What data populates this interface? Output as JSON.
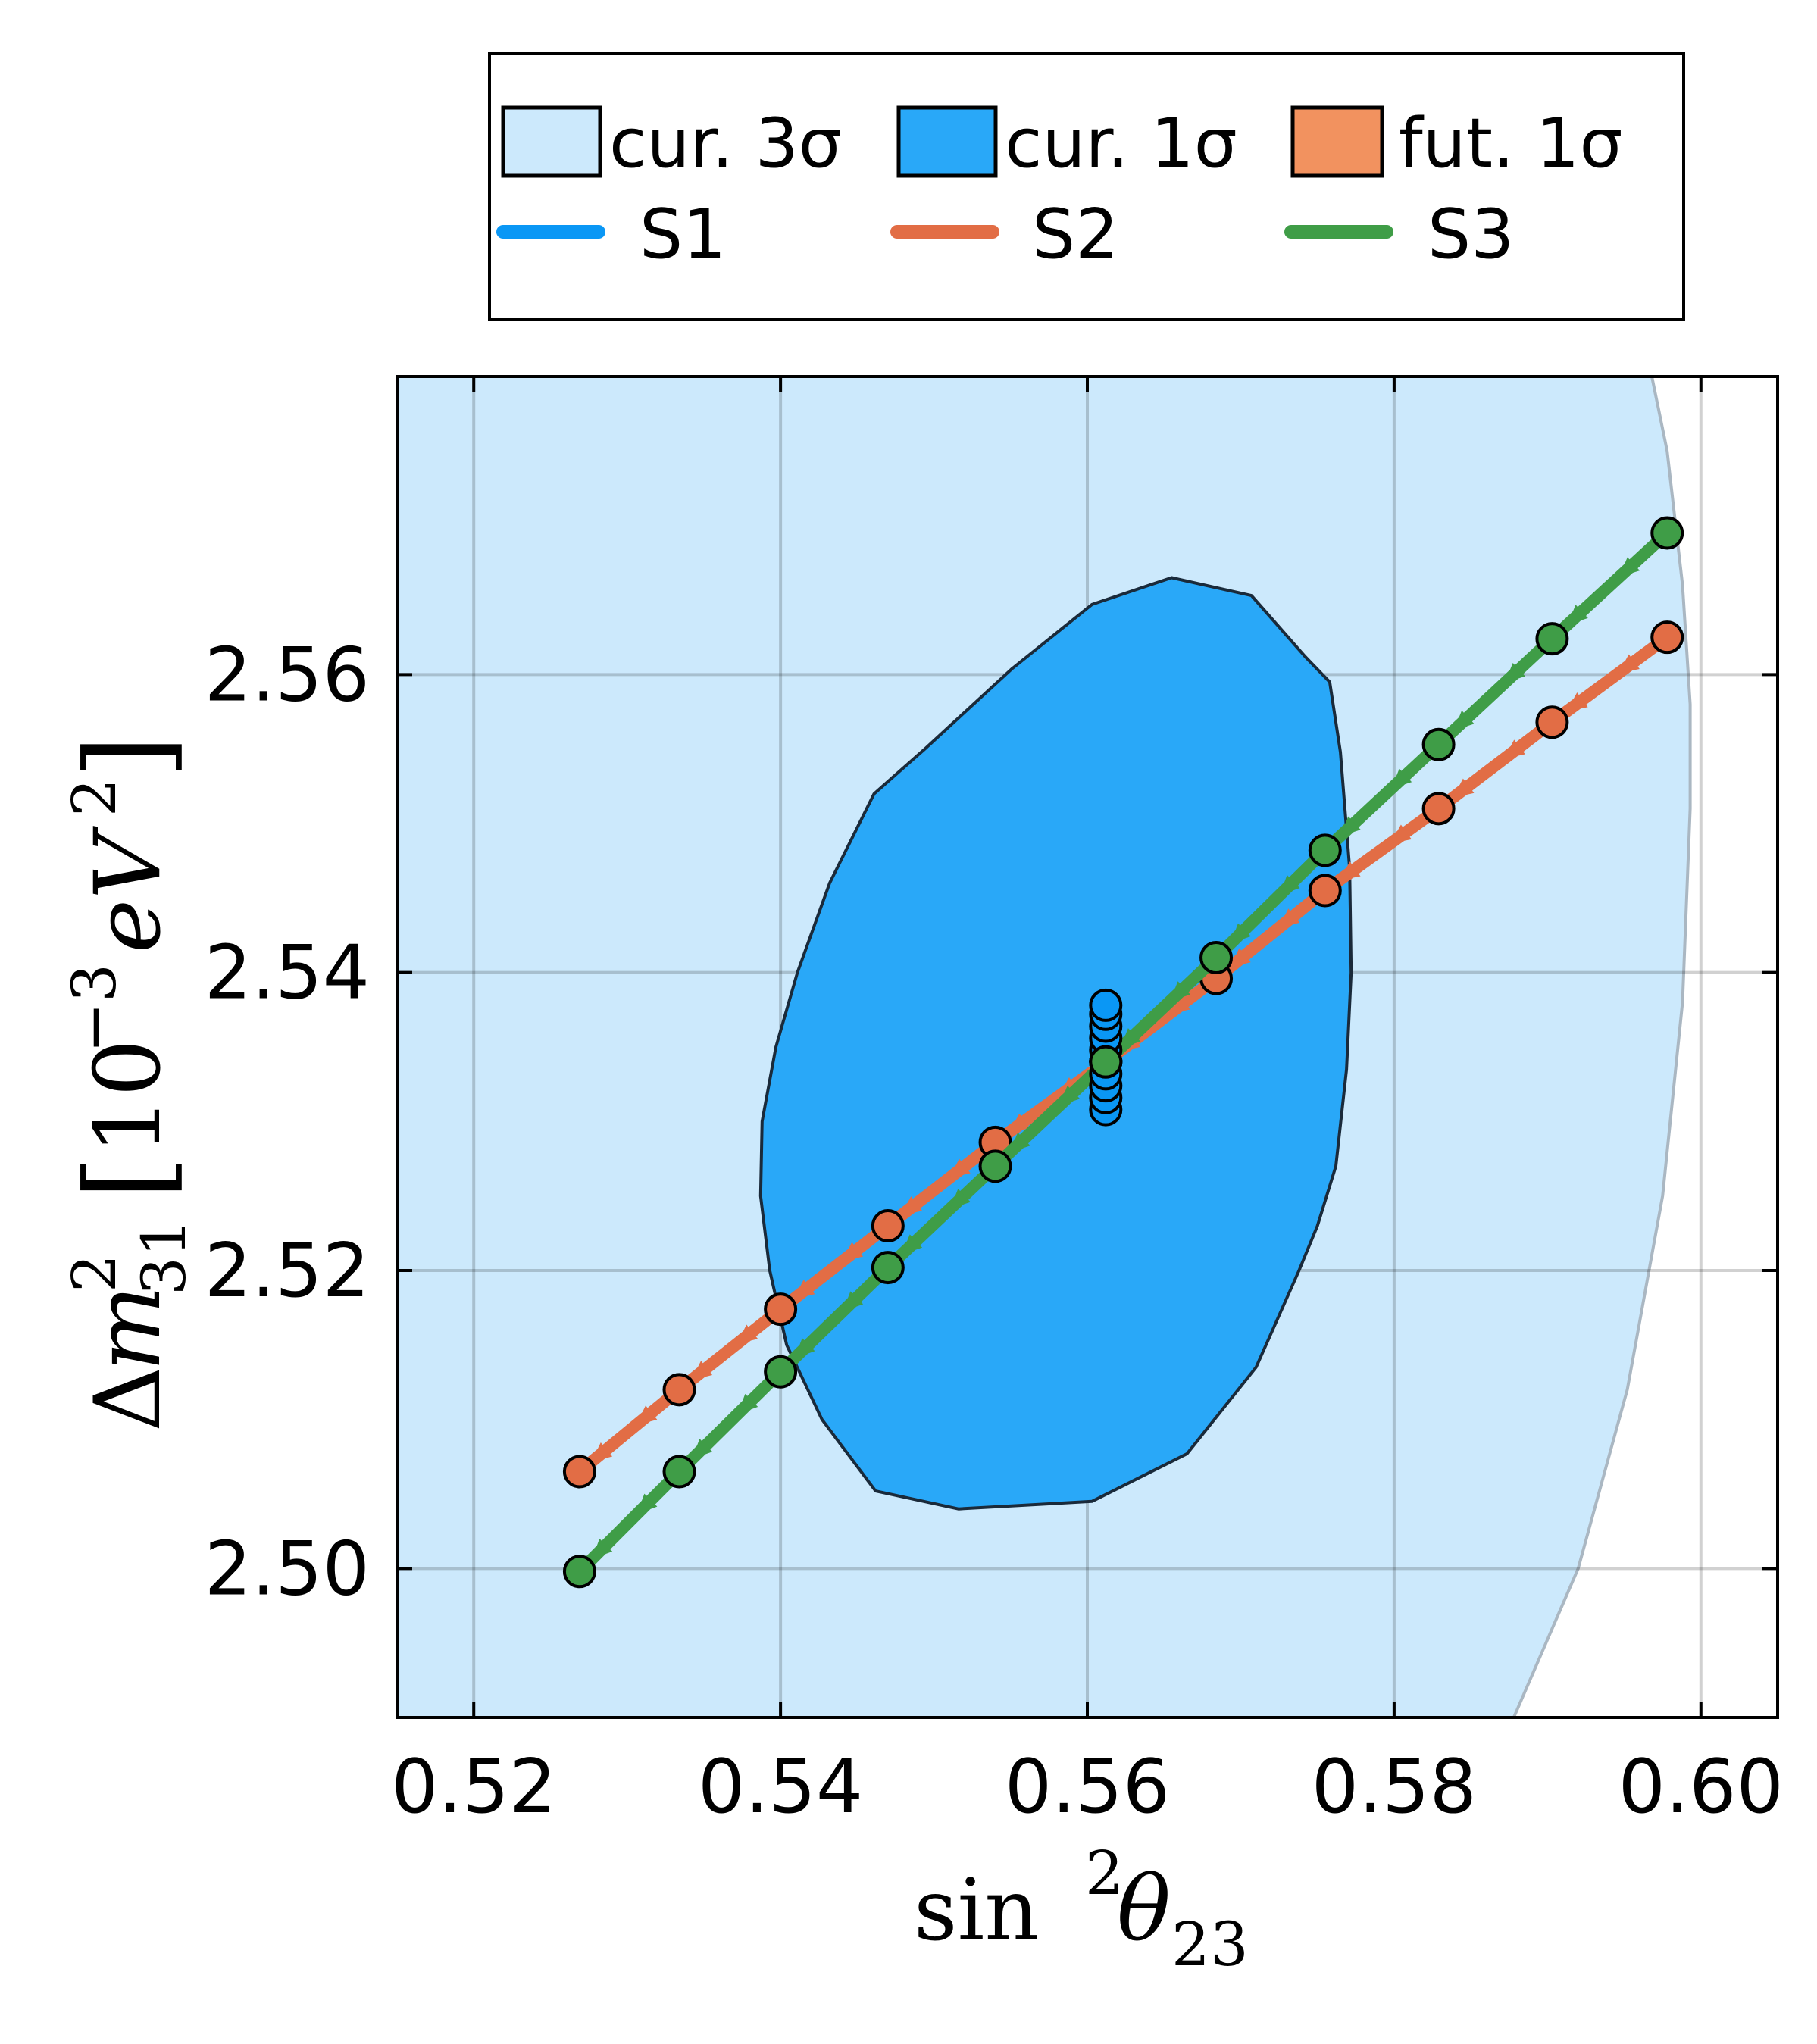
{
  "chart_data": {
    "type": "scatter",
    "xlabel": {
      "pre": "sin",
      "sup": "2",
      "theta": "θ",
      "sub": "23"
    },
    "ylabel": {
      "delta": "Δ",
      "m": "m",
      "sup": "2",
      "sub": "31",
      "open": "[",
      "base": "10",
      "exp": "−3",
      "unit": "eV",
      "unit_sup": "2",
      "close": "]"
    },
    "xlim": [
      0.515,
      0.605
    ],
    "ylim": [
      2.49,
      2.58
    ],
    "xticks": [
      0.52,
      0.54,
      0.56,
      0.58,
      0.6
    ],
    "xtick_labels": [
      "0.52",
      "0.54",
      "0.56",
      "0.58",
      "0.60"
    ],
    "yticks": [
      2.5,
      2.52,
      2.54,
      2.56
    ],
    "ytick_labels": [
      "2.50",
      "2.52",
      "2.54",
      "2.56"
    ],
    "grid": true,
    "legend_position": "top",
    "legend": [
      {
        "label": "cur. 3σ",
        "kind": "patch",
        "color": "#cce9fc"
      },
      {
        "label": "cur. 1σ",
        "kind": "patch",
        "color": "#29a8f8"
      },
      {
        "label": "fut. 1σ",
        "kind": "patch",
        "color": "#f2925f"
      },
      {
        "label": "S1",
        "kind": "line",
        "color": "#0a97f5"
      },
      {
        "label": "S2",
        "kind": "line",
        "color": "#e26d45"
      },
      {
        "label": "S3",
        "kind": "line",
        "color": "#3f9d47"
      }
    ],
    "regions": {
      "cur3sigma_right_boundary": [
        [
          0.5878,
          2.49
        ],
        [
          0.592,
          2.5
        ],
        [
          0.5952,
          2.512
        ],
        [
          0.5975,
          2.525
        ],
        [
          0.5988,
          2.538
        ],
        [
          0.5993,
          2.551
        ],
        [
          0.5993,
          2.558
        ],
        [
          0.5988,
          2.566
        ],
        [
          0.5978,
          2.575
        ],
        [
          0.5968,
          2.58
        ]
      ],
      "cur1sigma": [
        [
          0.5603,
          2.5647
        ],
        [
          0.5655,
          2.5665
        ],
        [
          0.5707,
          2.5653
        ],
        [
          0.5742,
          2.5612
        ],
        [
          0.5758,
          2.5595
        ],
        [
          0.5765,
          2.5548
        ],
        [
          0.5771,
          2.547
        ],
        [
          0.5772,
          2.54
        ],
        [
          0.5769,
          2.5335
        ],
        [
          0.5762,
          2.527
        ],
        [
          0.575,
          2.523
        ],
        [
          0.5738,
          2.52
        ],
        [
          0.571,
          2.5135
        ],
        [
          0.5665,
          2.5077
        ],
        [
          0.5603,
          2.5045
        ],
        [
          0.5516,
          2.504
        ],
        [
          0.5462,
          2.5052
        ],
        [
          0.5427,
          2.51
        ],
        [
          0.5404,
          2.515
        ],
        [
          0.5393,
          2.52
        ],
        [
          0.5387,
          2.525
        ],
        [
          0.5388,
          2.53
        ],
        [
          0.5397,
          2.535
        ],
        [
          0.5411,
          2.54
        ],
        [
          0.5432,
          2.546
        ],
        [
          0.5461,
          2.552
        ],
        [
          0.5494,
          2.555
        ],
        [
          0.5551,
          2.5604
        ]
      ]
    },
    "series": [
      {
        "name": "S1",
        "color": "#0a97f5",
        "x": [
          0.5612,
          0.5612,
          0.5612,
          0.5612,
          0.5612,
          0.5612,
          0.5612,
          0.5612,
          0.5612,
          0.5612
        ],
        "y": [
          2.5308,
          2.5316,
          2.5324,
          2.5332,
          2.534,
          2.5348,
          2.5356,
          2.5364,
          2.5372,
          2.5378
        ]
      },
      {
        "name": "S2",
        "color": "#e26d45",
        "x": [
          0.5269,
          0.5334,
          0.54,
          0.547,
          0.554,
          0.5612,
          0.5684,
          0.5755,
          0.5829,
          0.5903,
          0.5978
        ],
        "y": [
          2.5065,
          2.512,
          2.5174,
          2.523,
          2.5286,
          2.534,
          2.5396,
          2.5455,
          2.551,
          2.5568,
          2.5625
        ]
      },
      {
        "name": "S3",
        "color": "#3f9d47",
        "x": [
          0.5269,
          0.5334,
          0.54,
          0.547,
          0.554,
          0.5612,
          0.5684,
          0.5755,
          0.5829,
          0.5903,
          0.5978
        ],
        "y": [
          2.4998,
          2.5065,
          2.5132,
          2.5202,
          2.527,
          2.534,
          2.541,
          2.5482,
          2.5553,
          2.5624,
          2.5695
        ]
      }
    ]
  }
}
